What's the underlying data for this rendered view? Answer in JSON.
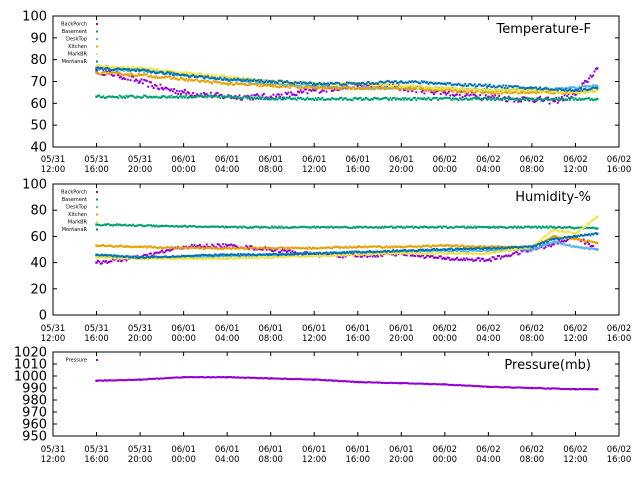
{
  "chart_data": [
    {
      "type": "scatter",
      "title": "Temperature-F",
      "ylim": [
        40,
        100
      ],
      "yticks": [
        "40",
        "50",
        "60",
        "70",
        "80",
        "90",
        "100"
      ],
      "xlim_hours": [
        0,
        52
      ],
      "xticks": [
        {
          "date": "05/31",
          "time": "12:00"
        },
        {
          "date": "05/31",
          "time": "16:00"
        },
        {
          "date": "05/31",
          "time": "20:00"
        },
        {
          "date": "06/01",
          "time": "00:00"
        },
        {
          "date": "06/01",
          "time": "04:00"
        },
        {
          "date": "06/01",
          "time": "08:00"
        },
        {
          "date": "06/01",
          "time": "12:00"
        },
        {
          "date": "06/01",
          "time": "16:00"
        },
        {
          "date": "06/01",
          "time": "20:00"
        },
        {
          "date": "06/02",
          "time": "00:00"
        },
        {
          "date": "06/02",
          "time": "04:00"
        },
        {
          "date": "06/02",
          "time": "08:00"
        },
        {
          "date": "06/02",
          "time": "12:00"
        },
        {
          "date": "06/02",
          "time": "16:00"
        }
      ],
      "legend_position": "top-left",
      "series": [
        {
          "name": "BackPorch",
          "color": "#9400d3",
          "x": [
            4,
            6,
            8,
            10,
            12,
            14,
            16,
            18,
            20,
            22,
            24,
            26,
            28,
            30,
            32,
            34,
            36,
            38,
            40,
            42,
            44,
            46,
            48,
            49,
            50
          ],
          "y": [
            75,
            73,
            70,
            67,
            65,
            64,
            63,
            63,
            63,
            64,
            66,
            67,
            68,
            68,
            67,
            66,
            65,
            64,
            63,
            62,
            62,
            61,
            64,
            70,
            76
          ]
        },
        {
          "name": "Basement",
          "color": "#009e73",
          "x": [
            4,
            10,
            16,
            22,
            28,
            34,
            40,
            46,
            50
          ],
          "y": [
            63,
            63,
            63,
            62,
            62,
            62,
            62,
            62,
            62
          ]
        },
        {
          "name": "DeskTop",
          "color": "#56b4e9",
          "x": [
            4,
            8,
            12,
            16,
            20,
            24,
            28,
            32,
            36,
            40,
            44,
            48,
            50
          ],
          "y": [
            76,
            75,
            73,
            71,
            69,
            68,
            67,
            67,
            67,
            66,
            66,
            67,
            68
          ]
        },
        {
          "name": "Kitchen",
          "color": "#e69f00",
          "x": [
            4,
            8,
            12,
            16,
            20,
            24,
            28,
            32,
            36,
            40,
            44,
            48,
            50
          ],
          "y": [
            74,
            73,
            71,
            69,
            68,
            67,
            67,
            67,
            66,
            65,
            65,
            65,
            66
          ]
        },
        {
          "name": "MarkBR",
          "color": "#f0e442",
          "x": [
            4,
            8,
            12,
            16,
            20,
            24,
            28,
            32,
            36,
            40,
            44,
            48,
            50
          ],
          "y": [
            77,
            76,
            74,
            72,
            70,
            69,
            69,
            68,
            67,
            66,
            66,
            65,
            66
          ]
        },
        {
          "name": "MontanaR",
          "color": "#0072b2",
          "x": [
            4,
            8,
            12,
            16,
            20,
            24,
            28,
            32,
            36,
            40,
            44,
            48,
            50
          ],
          "y": [
            76,
            75,
            73,
            71,
            70,
            69,
            69,
            70,
            69,
            68,
            67,
            66,
            67
          ]
        }
      ]
    },
    {
      "type": "scatter",
      "title": "Humidity-%",
      "ylim": [
        0,
        100
      ],
      "yticks": [
        "0",
        "20",
        "40",
        "60",
        "80",
        "100"
      ],
      "xlim_hours": [
        0,
        52
      ],
      "xticks": [
        {
          "date": "05/31",
          "time": "12:00"
        },
        {
          "date": "05/31",
          "time": "16:00"
        },
        {
          "date": "05/31",
          "time": "20:00"
        },
        {
          "date": "06/01",
          "time": "00:00"
        },
        {
          "date": "06/01",
          "time": "04:00"
        },
        {
          "date": "06/01",
          "time": "08:00"
        },
        {
          "date": "06/01",
          "time": "12:00"
        },
        {
          "date": "06/01",
          "time": "16:00"
        },
        {
          "date": "06/01",
          "time": "20:00"
        },
        {
          "date": "06/02",
          "time": "00:00"
        },
        {
          "date": "06/02",
          "time": "04:00"
        },
        {
          "date": "06/02",
          "time": "08:00"
        },
        {
          "date": "06/02",
          "time": "12:00"
        },
        {
          "date": "06/02",
          "time": "16:00"
        }
      ],
      "legend_position": "top-left",
      "series": [
        {
          "name": "BackPorch",
          "color": "#9400d3",
          "x": [
            4,
            8,
            12,
            16,
            20,
            24,
            28,
            32,
            36,
            40,
            44,
            46,
            48,
            50
          ],
          "y": [
            40,
            44,
            52,
            53,
            50,
            46,
            45,
            47,
            43,
            42,
            50,
            54,
            60,
            50
          ]
        },
        {
          "name": "Basement",
          "color": "#009e73",
          "x": [
            4,
            10,
            16,
            22,
            28,
            34,
            40,
            46,
            50
          ],
          "y": [
            69,
            68,
            67,
            67,
            67,
            67,
            67,
            67,
            66
          ]
        },
        {
          "name": "DeskTop",
          "color": "#56b4e9",
          "x": [
            4,
            8,
            12,
            16,
            20,
            24,
            28,
            32,
            36,
            40,
            44,
            46,
            48,
            50
          ],
          "y": [
            45,
            44,
            44,
            45,
            46,
            47,
            48,
            48,
            49,
            49,
            50,
            56,
            52,
            50
          ]
        },
        {
          "name": "Kitchen",
          "color": "#e69f00",
          "x": [
            4,
            8,
            12,
            16,
            20,
            24,
            28,
            32,
            36,
            40,
            44,
            46,
            48,
            50
          ],
          "y": [
            53,
            52,
            51,
            51,
            51,
            51,
            52,
            52,
            53,
            52,
            52,
            60,
            58,
            55
          ]
        },
        {
          "name": "MarkBR",
          "color": "#f0e442",
          "x": [
            4,
            8,
            12,
            16,
            20,
            24,
            28,
            32,
            36,
            40,
            44,
            46,
            48,
            50
          ],
          "y": [
            44,
            43,
            43,
            43,
            44,
            45,
            46,
            47,
            47,
            47,
            52,
            65,
            62,
            75
          ]
        },
        {
          "name": "MontanaR",
          "color": "#0072b2",
          "x": [
            4,
            8,
            12,
            16,
            20,
            24,
            28,
            32,
            36,
            40,
            44,
            46,
            48,
            50
          ],
          "y": [
            46,
            44,
            45,
            46,
            46,
            47,
            48,
            49,
            50,
            51,
            52,
            58,
            60,
            62
          ]
        }
      ]
    },
    {
      "type": "scatter",
      "title": "Pressure(mb)",
      "ylim": [
        950,
        1020
      ],
      "yticks": [
        "950",
        "960",
        "970",
        "980",
        "990",
        "1000",
        "1010",
        "1020"
      ],
      "xlim_hours": [
        0,
        52
      ],
      "xticks": [
        {
          "date": "05/31",
          "time": "12:00"
        },
        {
          "date": "05/31",
          "time": "16:00"
        },
        {
          "date": "05/31",
          "time": "20:00"
        },
        {
          "date": "06/01",
          "time": "00:00"
        },
        {
          "date": "06/01",
          "time": "04:00"
        },
        {
          "date": "06/01",
          "time": "08:00"
        },
        {
          "date": "06/01",
          "time": "12:00"
        },
        {
          "date": "06/01",
          "time": "16:00"
        },
        {
          "date": "06/01",
          "time": "20:00"
        },
        {
          "date": "06/02",
          "time": "00:00"
        },
        {
          "date": "06/02",
          "time": "04:00"
        },
        {
          "date": "06/02",
          "time": "08:00"
        },
        {
          "date": "06/02",
          "time": "12:00"
        },
        {
          "date": "06/02",
          "time": "16:00"
        }
      ],
      "legend_position": "top-left",
      "series": [
        {
          "name": "Pressure",
          "color": "#9400d3",
          "x": [
            4,
            8,
            12,
            16,
            20,
            24,
            28,
            32,
            36,
            40,
            44,
            48,
            50
          ],
          "y": [
            996,
            997,
            999,
            999,
            998,
            997,
            995,
            994,
            993,
            991,
            990,
            989,
            989
          ]
        }
      ]
    }
  ]
}
